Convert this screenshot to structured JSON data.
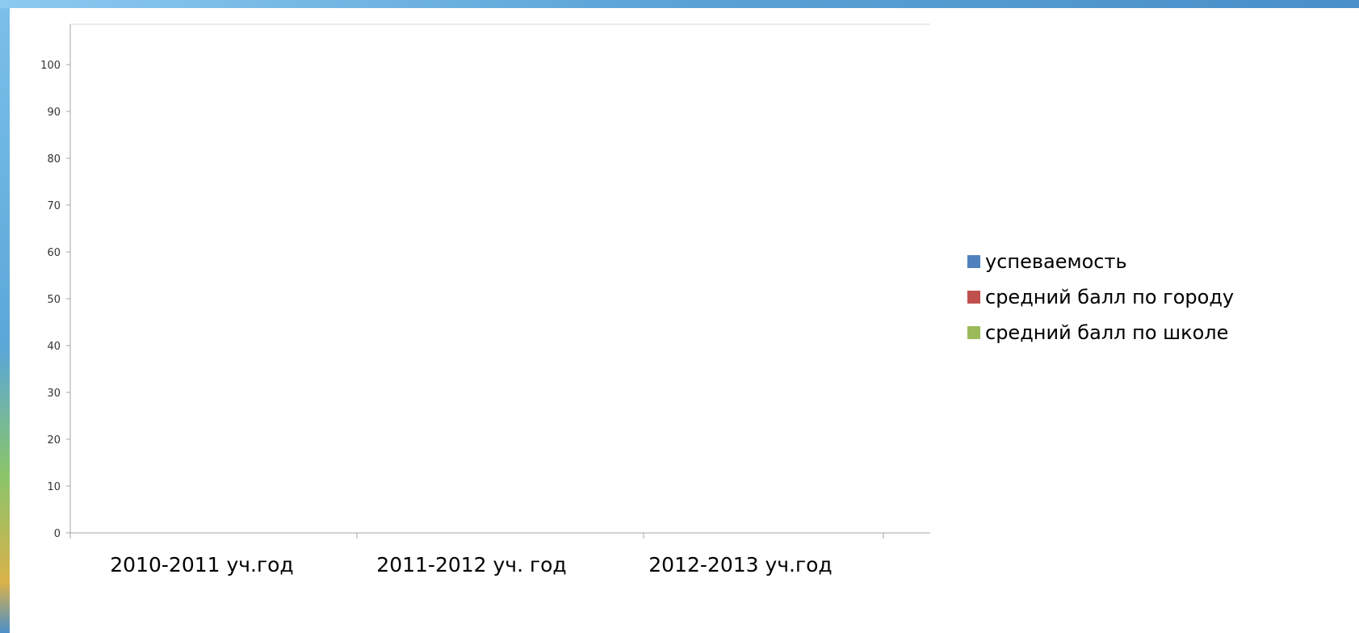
{
  "chart_data": {
    "type": "bar",
    "title": "",
    "xlabel": "",
    "ylabel": "",
    "categories": [
      "2010-2011 уч.год",
      "2011-2012 уч. год",
      "2012-2013 уч.год"
    ],
    "ylim": [
      0,
      100
    ],
    "y_ticks": [
      0,
      10,
      20,
      30,
      40,
      50,
      60,
      70,
      80,
      90,
      100
    ],
    "grid": false,
    "legend_position": "right",
    "series": [
      {
        "name": "успеваемость",
        "color": "#4f81bd",
        "values": [
          null,
          null,
          null
        ]
      },
      {
        "name": "средний балл по городу",
        "color": "#c0504d",
        "values": [
          null,
          null,
          null
        ]
      },
      {
        "name": "средний балл по школе",
        "color": "#9bbb59",
        "values": [
          null,
          null,
          null
        ]
      }
    ]
  }
}
